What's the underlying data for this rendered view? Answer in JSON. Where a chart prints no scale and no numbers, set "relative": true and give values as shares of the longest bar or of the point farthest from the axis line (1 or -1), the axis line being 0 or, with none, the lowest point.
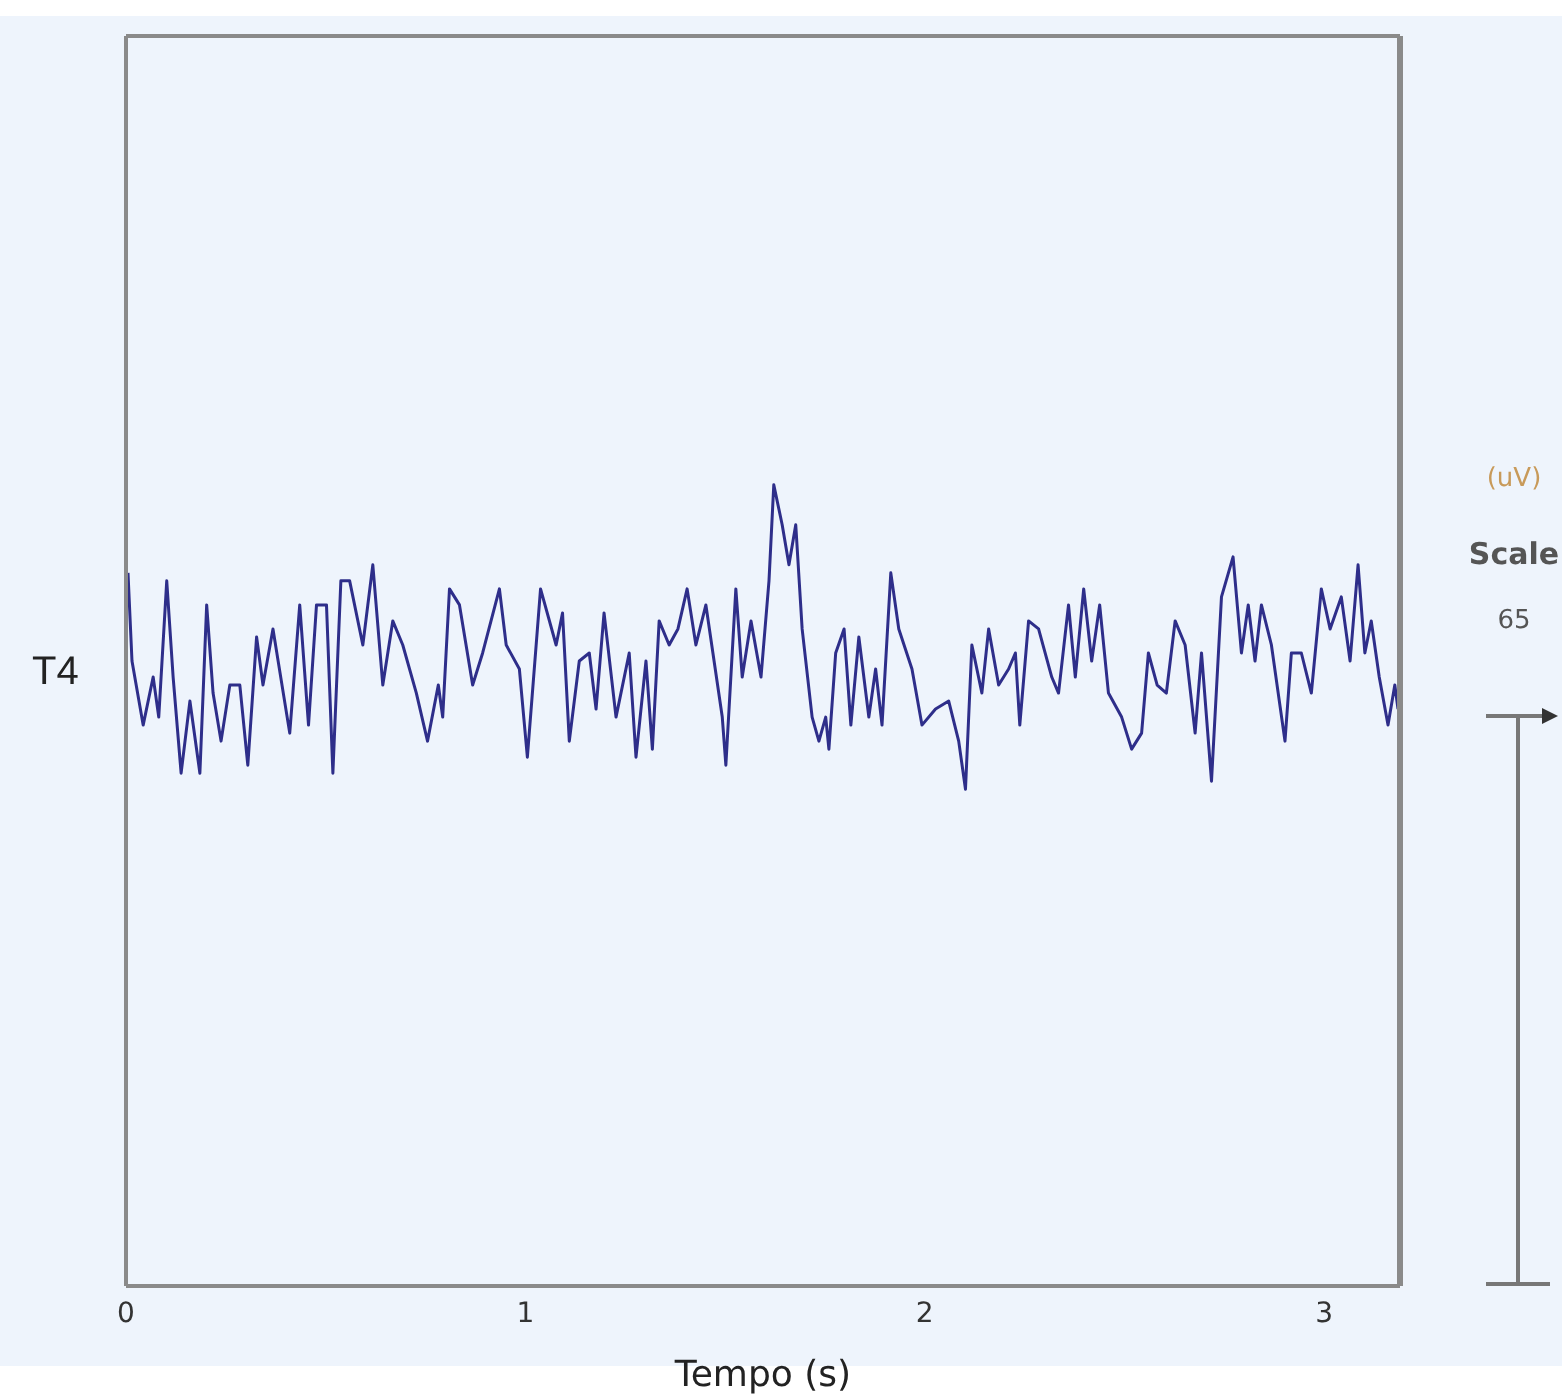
{
  "chart_data": {
    "type": "line",
    "relative": true,
    "xlabel": "Tempo (s)",
    "ylabel": "T4",
    "xlim": [
      0,
      3.19
    ],
    "xticks": [
      0,
      1,
      2,
      3
    ],
    "grid": false,
    "legend": false,
    "marker": "none",
    "line_style": "solid",
    "annotations": [
      "(uV)",
      "Scale",
      "65"
    ],
    "x": [
      0.005,
      0.015,
      0.043,
      0.068,
      0.082,
      0.102,
      0.118,
      0.138,
      0.16,
      0.185,
      0.202,
      0.218,
      0.238,
      0.26,
      0.285,
      0.305,
      0.327,
      0.343,
      0.368,
      0.41,
      0.435,
      0.457,
      0.477,
      0.502,
      0.518,
      0.538,
      0.56,
      0.593,
      0.618,
      0.643,
      0.668,
      0.693,
      0.727,
      0.755,
      0.782,
      0.793,
      0.81,
      0.835,
      0.868,
      0.893,
      0.935,
      0.952,
      0.985,
      1.005,
      1.038,
      1.077,
      1.093,
      1.11,
      1.135,
      1.16,
      1.177,
      1.197,
      1.227,
      1.26,
      1.277,
      1.302,
      1.318,
      1.335,
      1.36,
      1.382,
      1.405,
      1.427,
      1.452,
      1.493,
      1.502,
      1.527,
      1.543,
      1.565,
      1.59,
      1.61,
      1.622,
      1.643,
      1.66,
      1.677,
      1.693,
      1.718,
      1.735,
      1.752,
      1.76,
      1.777,
      1.798,
      1.815,
      1.835,
      1.86,
      1.877,
      1.893,
      1.915,
      1.935,
      1.968,
      1.993,
      2.027,
      2.06,
      2.085,
      2.102,
      2.118,
      2.143,
      2.16,
      2.185,
      2.21,
      2.227,
      2.238,
      2.26,
      2.285,
      2.318,
      2.335,
      2.36,
      2.377,
      2.398,
      2.418,
      2.438,
      2.46,
      2.493,
      2.518,
      2.543,
      2.56,
      2.582,
      2.605,
      2.627,
      2.652,
      2.677,
      2.693,
      2.718,
      2.743,
      2.772,
      2.793,
      2.81,
      2.827,
      2.843,
      2.868,
      2.902,
      2.918,
      2.943,
      2.968,
      2.993,
      3.015,
      3.043,
      3.065,
      3.085,
      3.102,
      3.118,
      3.138,
      3.16,
      3.177,
      3.185
    ],
    "series": [
      {
        "color": "#2e2e8a",
        "values": [
          0.89,
          0.78,
          0.7,
          0.76,
          0.71,
          0.88,
          0.76,
          0.64,
          0.73,
          0.64,
          0.85,
          0.74,
          0.68,
          0.75,
          0.75,
          0.65,
          0.81,
          0.75,
          0.82,
          0.69,
          0.85,
          0.7,
          0.85,
          0.85,
          0.64,
          0.88,
          0.88,
          0.8,
          0.9,
          0.75,
          0.83,
          0.8,
          0.74,
          0.68,
          0.75,
          0.71,
          0.87,
          0.85,
          0.75,
          0.79,
          0.87,
          0.8,
          0.77,
          0.66,
          0.87,
          0.8,
          0.84,
          0.68,
          0.78,
          0.79,
          0.72,
          0.84,
          0.71,
          0.79,
          0.66,
          0.78,
          0.67,
          0.83,
          0.8,
          0.82,
          0.87,
          0.8,
          0.85,
          0.71,
          0.65,
          0.87,
          0.76,
          0.83,
          0.76,
          0.88,
          1.0,
          0.95,
          0.9,
          0.95,
          0.82,
          0.71,
          0.68,
          0.71,
          0.67,
          0.79,
          0.82,
          0.7,
          0.81,
          0.71,
          0.77,
          0.7,
          0.89,
          0.82,
          0.77,
          0.7,
          0.72,
          0.73,
          0.68,
          0.62,
          0.8,
          0.74,
          0.82,
          0.75,
          0.77,
          0.79,
          0.7,
          0.83,
          0.82,
          0.76,
          0.74,
          0.85,
          0.76,
          0.87,
          0.78,
          0.85,
          0.74,
          0.71,
          0.67,
          0.69,
          0.79,
          0.75,
          0.74,
          0.83,
          0.8,
          0.69,
          0.79,
          0.63,
          0.86,
          0.91,
          0.79,
          0.85,
          0.78,
          0.85,
          0.8,
          0.68,
          0.79,
          0.79,
          0.74,
          0.87,
          0.82,
          0.86,
          0.78,
          0.9,
          0.79,
          0.83,
          0.76,
          0.7,
          0.75,
          0.72
        ]
      }
    ]
  }
}
